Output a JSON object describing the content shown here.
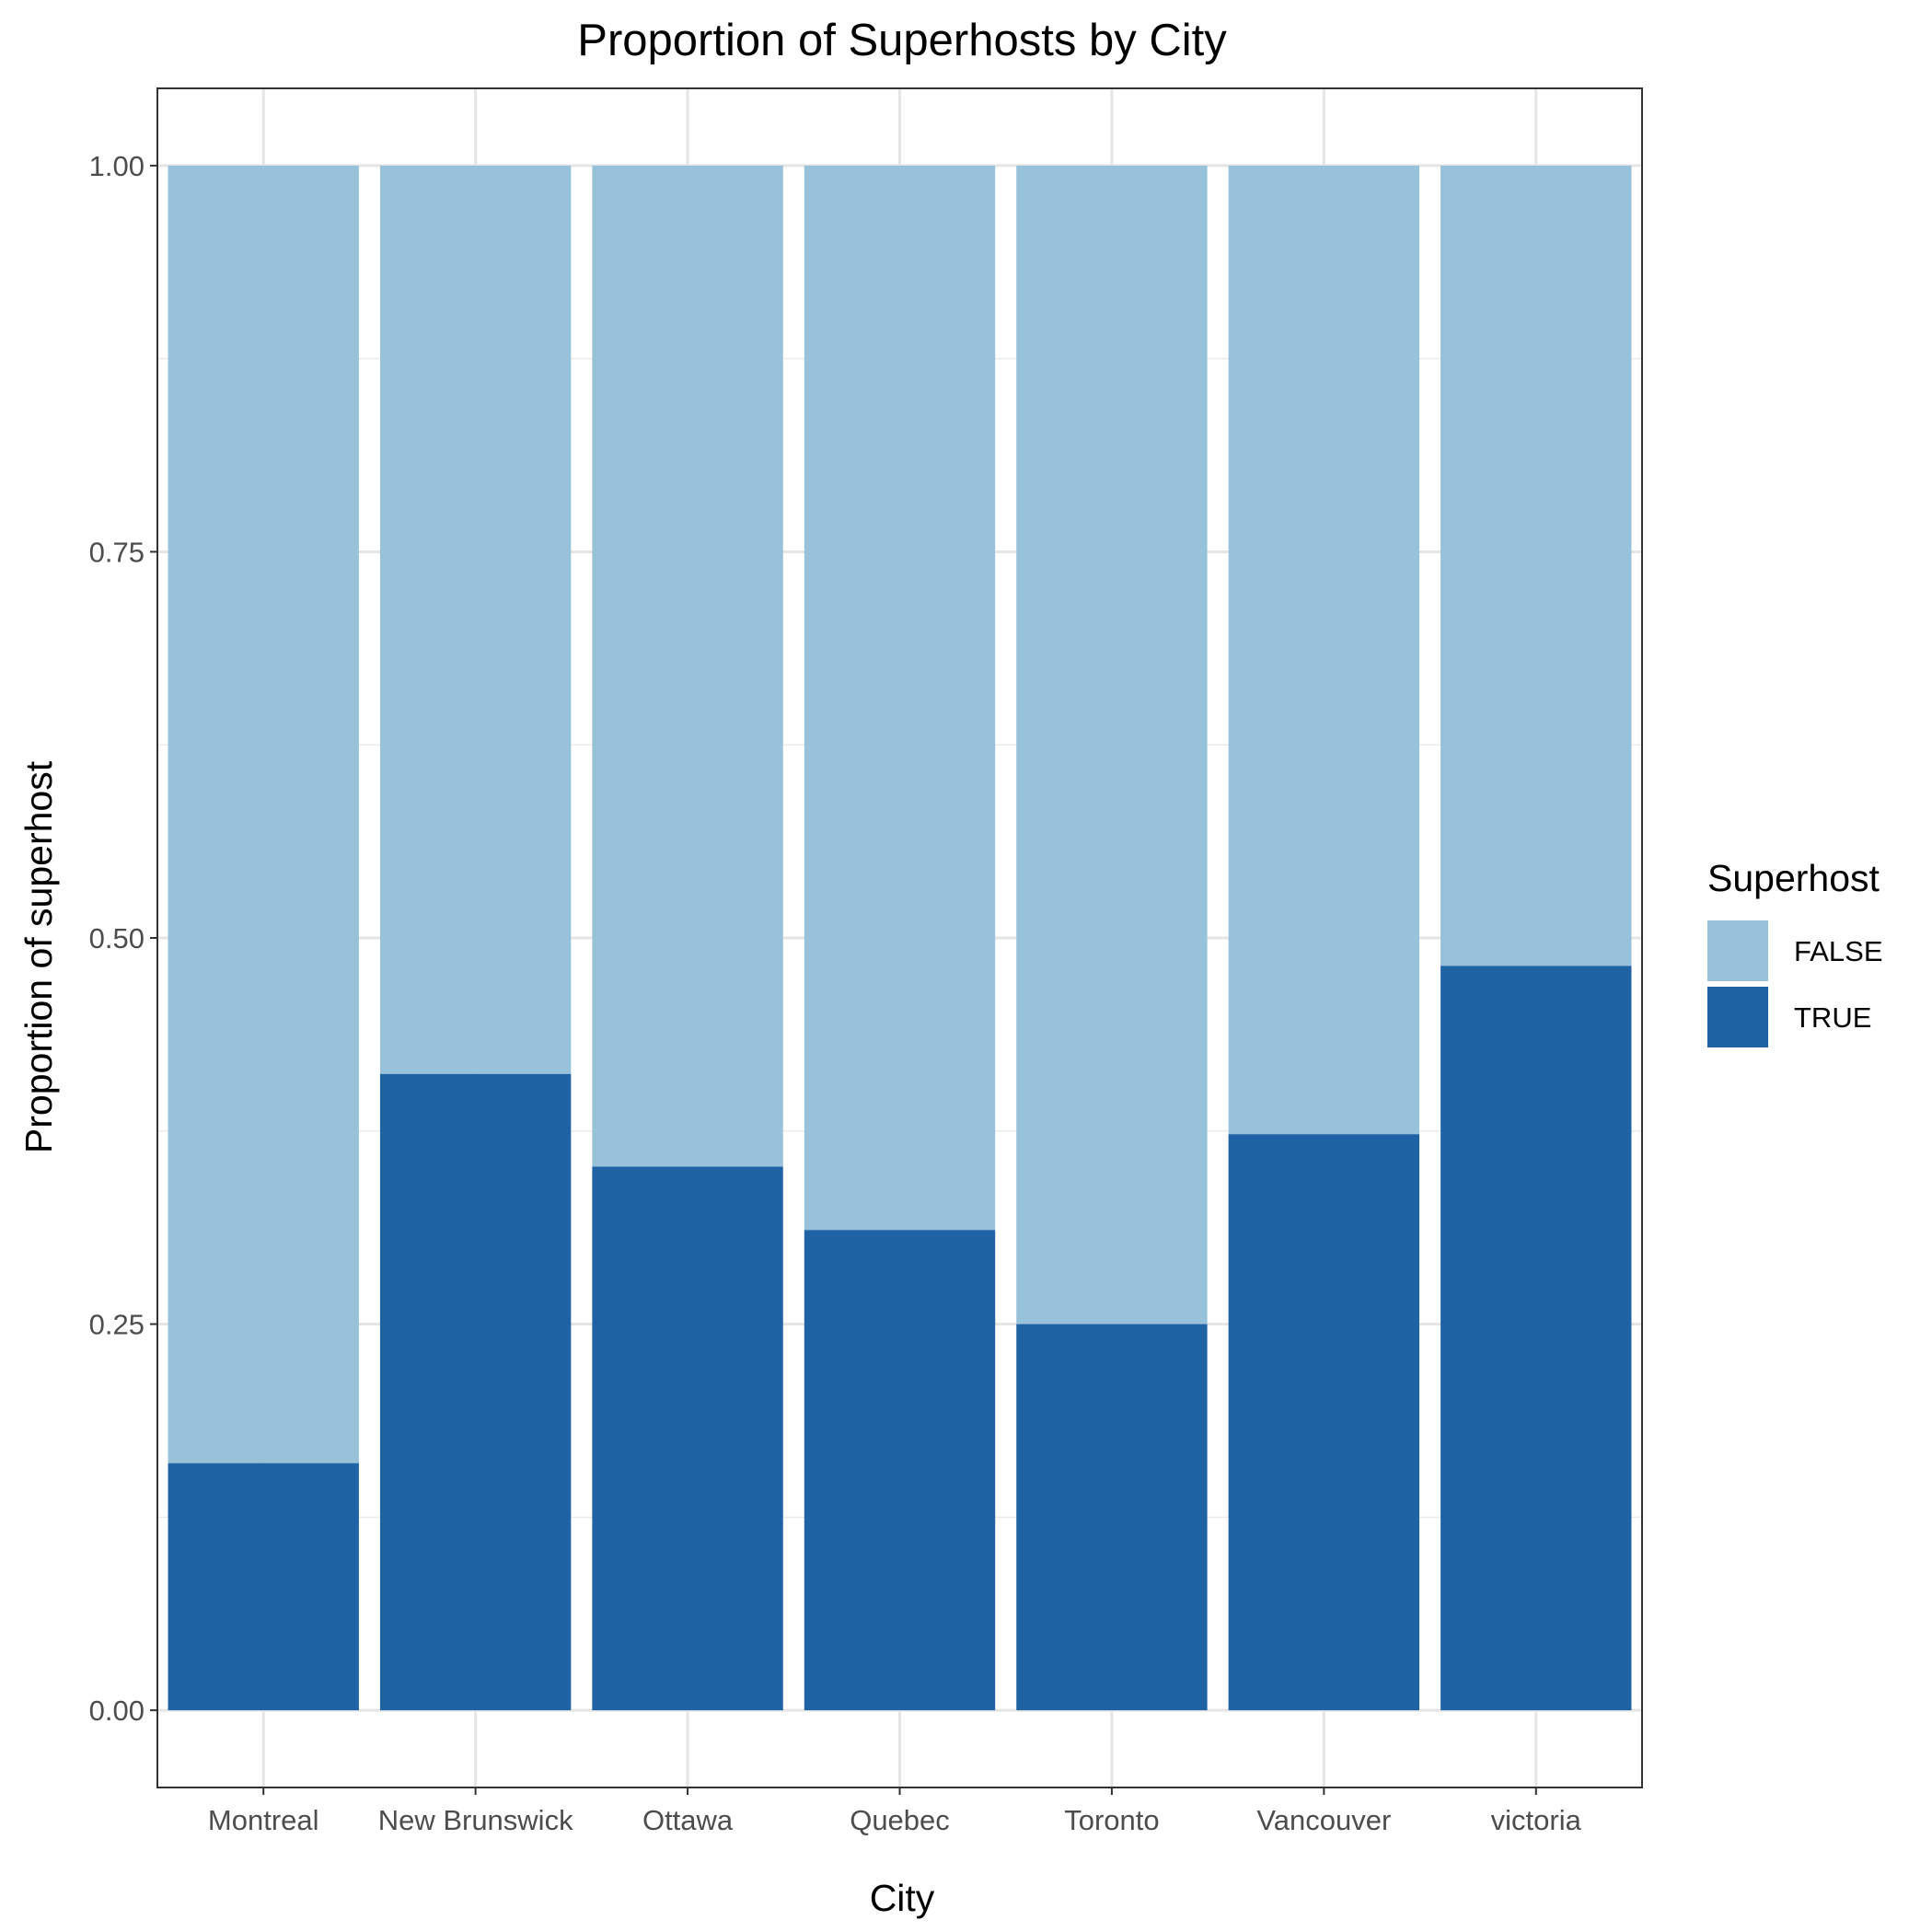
{
  "chart_data": {
    "type": "bar",
    "stacked": true,
    "title": "Proportion of Superhosts by City",
    "xlabel": "City",
    "ylabel": "Proportion of superhost",
    "categories": [
      "Montreal",
      "New Brunswick",
      "Ottawa",
      "Quebec",
      "Toronto",
      "Vancouver",
      "victoria"
    ],
    "series": [
      {
        "name": "TRUE",
        "color": "#1f63a5",
        "values": [
          0.16,
          0.412,
          0.352,
          0.311,
          0.25,
          0.373,
          0.482
        ]
      },
      {
        "name": "FALSE",
        "color": "#97c2da",
        "values": [
          0.84,
          0.588,
          0.648,
          0.689,
          0.75,
          0.627,
          0.518
        ]
      }
    ],
    "ylim": [
      -0.05,
      1.05
    ],
    "yticks": [
      0,
      0.25,
      0.5,
      0.75,
      1
    ],
    "ytick_labels": [
      "0.00",
      "0.25",
      "0.50",
      "0.75",
      "1.00"
    ],
    "grid": true,
    "legend": {
      "title": "Superhost",
      "position": "right",
      "entries": [
        {
          "label": "FALSE",
          "color": "#97c2da"
        },
        {
          "label": "TRUE",
          "color": "#1f63a5"
        }
      ]
    }
  }
}
